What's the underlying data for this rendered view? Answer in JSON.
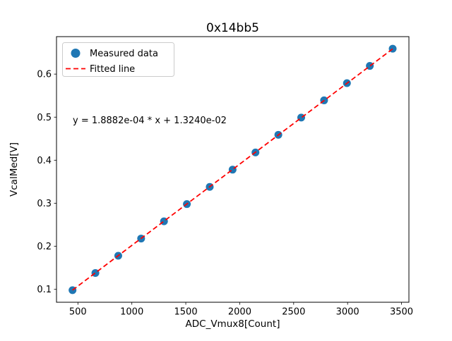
{
  "chart_data": {
    "type": "scatter",
    "title": "0x14bb5",
    "xlabel": "ADC_Vmux8[Count]",
    "ylabel": "VcalMed[V]",
    "annotation": "y = 1.8882e-04 * x + 1.3240e-02",
    "series": [
      {
        "name": "Measured data",
        "type": "scatter",
        "x": [
          450,
          662,
          874,
          1086,
          1298,
          1510,
          1722,
          1934,
          2146,
          2358,
          2570,
          2782,
          2994,
          3206,
          3418
        ],
        "y": [
          0.098,
          0.138,
          0.178,
          0.218,
          0.258,
          0.298,
          0.338,
          0.378,
          0.418,
          0.459,
          0.499,
          0.539,
          0.579,
          0.619,
          0.659
        ]
      },
      {
        "name": "Fitted line",
        "type": "line",
        "fit": {
          "slope": 0.00018882,
          "intercept": 0.01324
        },
        "x_range": [
          450,
          3418
        ]
      }
    ],
    "xticks": [
      500,
      1000,
      1500,
      2000,
      2500,
      3000,
      3500
    ],
    "yticks": [
      0.1,
      0.2,
      0.3,
      0.4,
      0.5,
      0.6
    ],
    "xlim": [
      301.5,
      3568.5
    ],
    "ylim": [
      0.07,
      0.687
    ],
    "grid": false,
    "legend": {
      "position": "upper left",
      "items": [
        {
          "label": "Measured data",
          "marker": "circle"
        },
        {
          "label": "Fitted line",
          "marker": "dashed-line"
        }
      ]
    },
    "colors": {
      "marker": "#1f77b4",
      "fit_line": "#ff0000",
      "axes": "#000000",
      "legend_edge": "#cccccc"
    }
  }
}
